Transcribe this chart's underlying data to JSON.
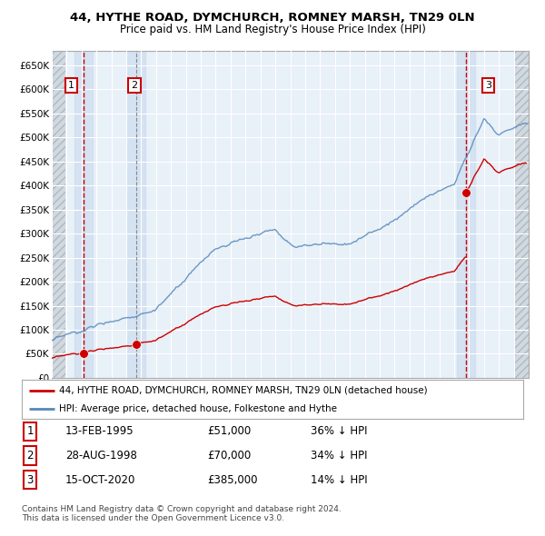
{
  "title1": "44, HYTHE ROAD, DYMCHURCH, ROMNEY MARSH, TN29 0LN",
  "title2": "Price paid vs. HM Land Registry's House Price Index (HPI)",
  "ylim": [
    0,
    680000
  ],
  "yticks": [
    0,
    50000,
    100000,
    150000,
    200000,
    250000,
    300000,
    350000,
    400000,
    450000,
    500000,
    550000,
    600000,
    650000
  ],
  "ytick_labels": [
    "£0",
    "£50K",
    "£100K",
    "£150K",
    "£200K",
    "£250K",
    "£300K",
    "£350K",
    "£400K",
    "£450K",
    "£500K",
    "£550K",
    "£600K",
    "£650K"
  ],
  "sale_prices": [
    51000,
    70000,
    385000
  ],
  "legend_line1": "44, HYTHE ROAD, DYMCHURCH, ROMNEY MARSH, TN29 0LN (detached house)",
  "legend_line2": "HPI: Average price, detached house, Folkestone and Hythe",
  "table_data": [
    [
      "1",
      "13-FEB-1995",
      "£51,000",
      "36% ↓ HPI"
    ],
    [
      "2",
      "28-AUG-1998",
      "£70,000",
      "34% ↓ HPI"
    ],
    [
      "3",
      "15-OCT-2020",
      "£385,000",
      "14% ↓ HPI"
    ]
  ],
  "footer": "Contains HM Land Registry data © Crown copyright and database right 2024.\nThis data is licensed under the Open Government Licence v3.0.",
  "plot_bg": "#e8f0f8",
  "grid_color": "#ffffff",
  "sale_line_color": "#cc0000",
  "hpi_line_color": "#5588bb",
  "marker_color": "#cc0000",
  "highlight_bg": "#ccddf0"
}
